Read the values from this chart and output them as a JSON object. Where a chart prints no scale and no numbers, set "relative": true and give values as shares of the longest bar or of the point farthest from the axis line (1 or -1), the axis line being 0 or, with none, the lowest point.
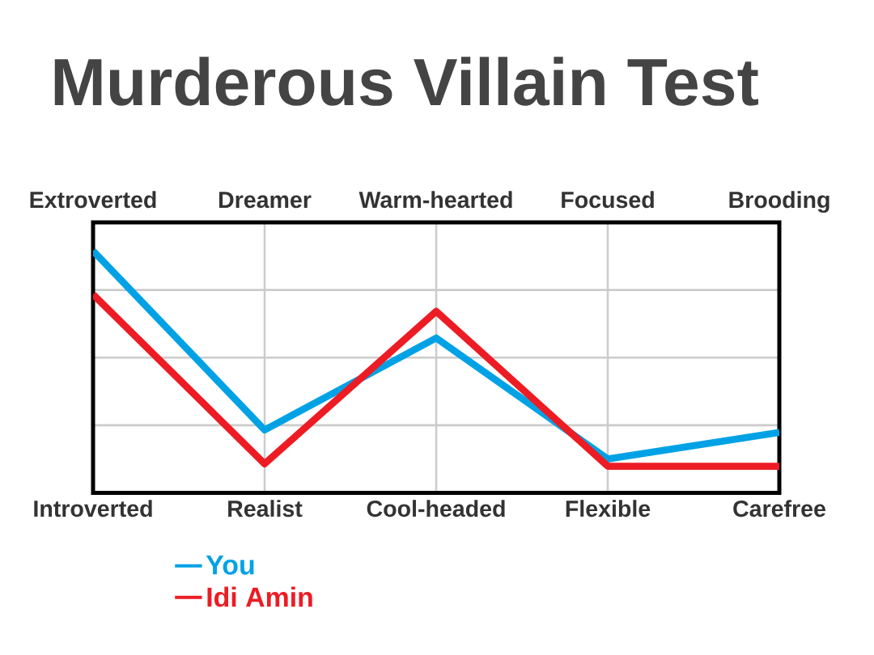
{
  "chart_data": {
    "type": "line",
    "title": "Murderous Villain Test",
    "categories": [
      "Introverted",
      "Realist",
      "Cool-headed",
      "Flexible",
      "Carefree"
    ],
    "annotations": [
      "Extroverted",
      "Dreamer",
      "Warm-hearted",
      "Focused",
      "Brooding"
    ],
    "relative": true,
    "series": [
      {
        "name": "You",
        "color": "#00a2e5",
        "values": [
          1,
          0.26,
          0.64,
          0.14,
          0.25
        ]
      },
      {
        "name": "Idi Amin",
        "color": "#ed1c24",
        "values": [
          0.82,
          0.12,
          0.75,
          0.11,
          0.11
        ]
      }
    ],
    "grid": true,
    "legend": "bottom left"
  }
}
